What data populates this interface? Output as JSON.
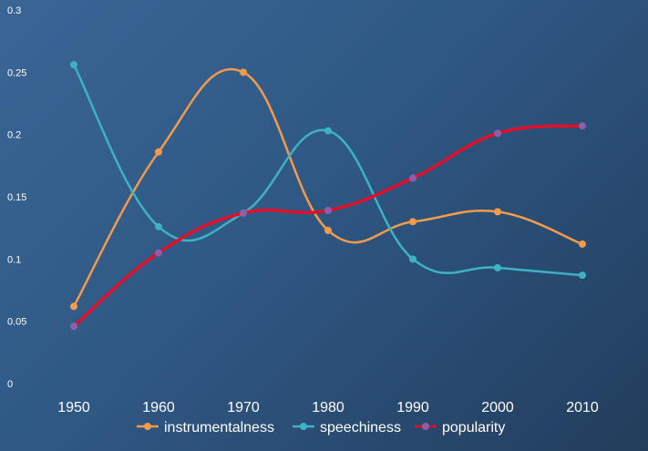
{
  "chart_data": {
    "type": "line",
    "categories": [
      "1950",
      "1960",
      "1970",
      "1980",
      "1990",
      "2000",
      "2010"
    ],
    "ylim": [
      0,
      0.3
    ],
    "yticks": [
      "0",
      "0.05",
      "0.1",
      "0.15",
      "0.2",
      "0.25",
      "0.3"
    ],
    "grid": false,
    "smooth": true,
    "legend_position": "bottom",
    "series": [
      {
        "name": "instrumentalness",
        "color": "#f29b4d",
        "values": [
          0.062,
          0.186,
          0.25,
          0.123,
          0.13,
          0.138,
          0.112
        ]
      },
      {
        "name": "speechiness",
        "color": "#3fb1c5",
        "values": [
          0.256,
          0.126,
          0.137,
          0.203,
          0.1,
          0.093,
          0.087
        ]
      },
      {
        "name": "popularity",
        "color": "#e0102a",
        "values": [
          0.046,
          0.105,
          0.137,
          0.139,
          0.165,
          0.201,
          0.207
        ]
      }
    ]
  }
}
